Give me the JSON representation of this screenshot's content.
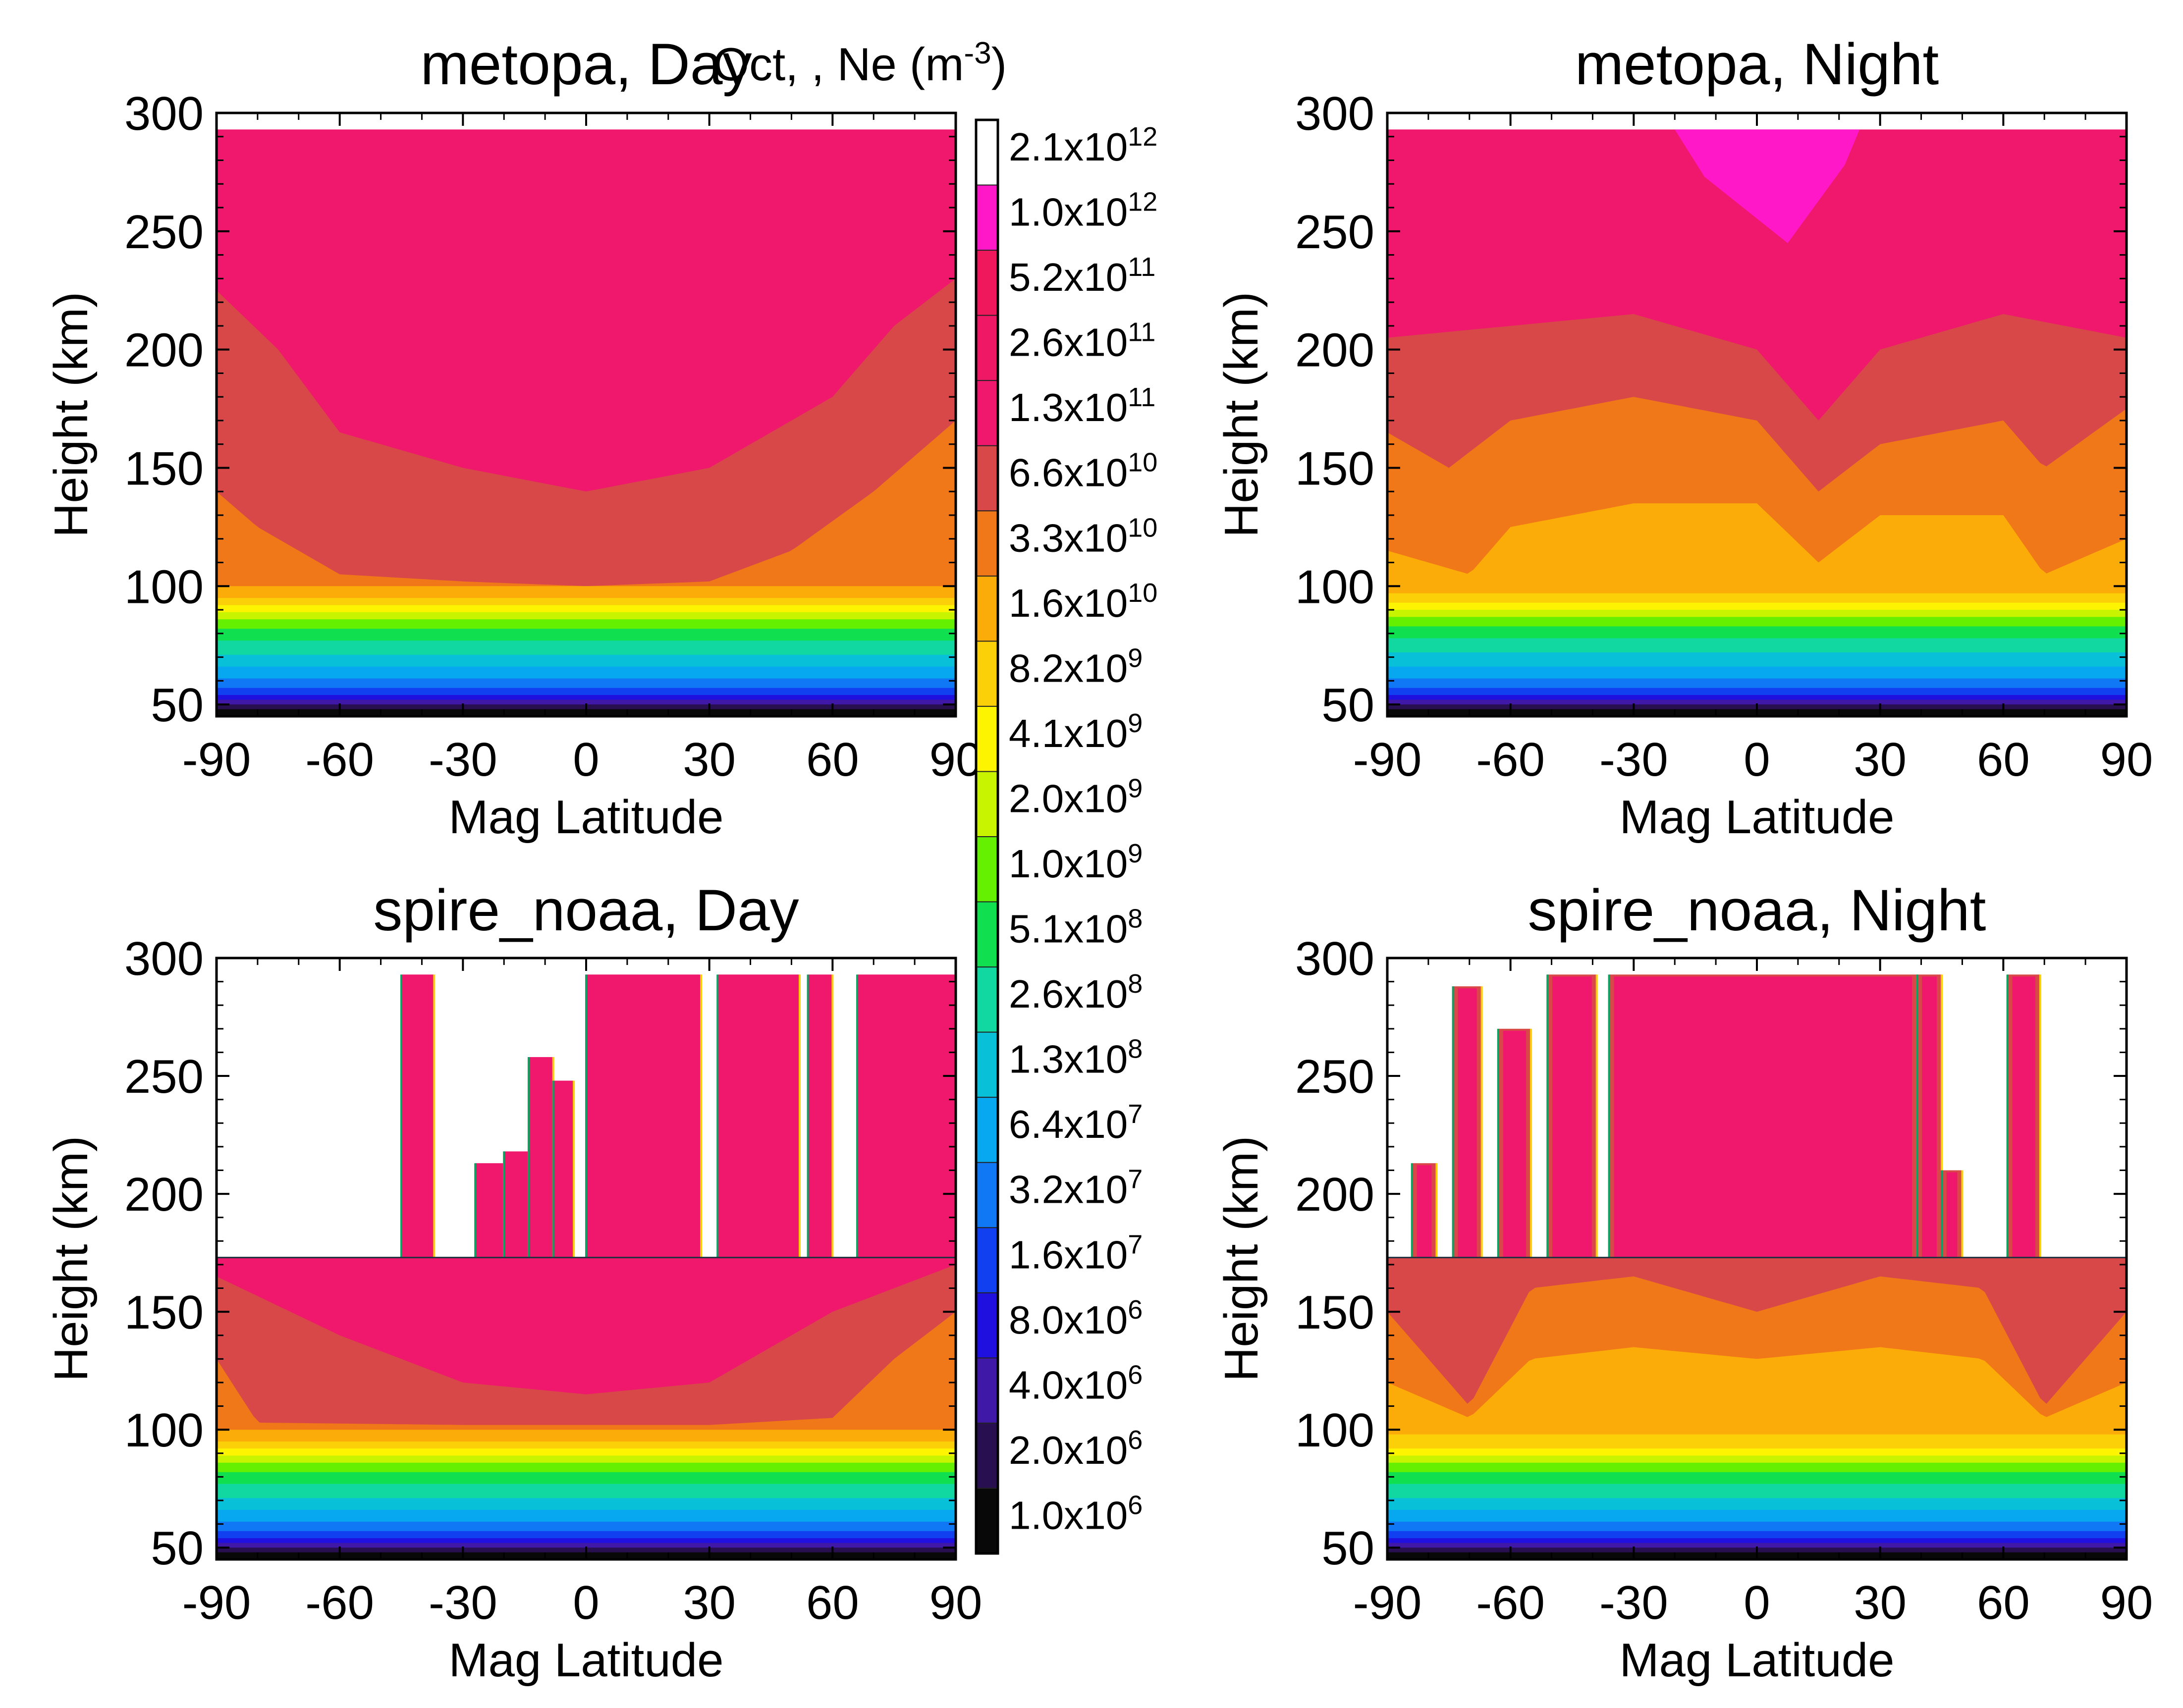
{
  "colorbar": {
    "title": "Oct, , Ne (m",
    "title_sup": "-3",
    "title_end": ")",
    "labels": [
      {
        "mant": "2.1x10",
        "exp": "12"
      },
      {
        "mant": "1.0x10",
        "exp": "12"
      },
      {
        "mant": "5.2x10",
        "exp": "11"
      },
      {
        "mant": "2.6x10",
        "exp": "11"
      },
      {
        "mant": "1.3x10",
        "exp": "11"
      },
      {
        "mant": "6.6x10",
        "exp": "10"
      },
      {
        "mant": "3.3x10",
        "exp": "10"
      },
      {
        "mant": "1.6x10",
        "exp": "10"
      },
      {
        "mant": "8.2x10",
        "exp": "9"
      },
      {
        "mant": "4.1x10",
        "exp": "9"
      },
      {
        "mant": "2.0x10",
        "exp": "9"
      },
      {
        "mant": "1.0x10",
        "exp": "9"
      },
      {
        "mant": "5.1x10",
        "exp": "8"
      },
      {
        "mant": "2.6x10",
        "exp": "8"
      },
      {
        "mant": "1.3x10",
        "exp": "8"
      },
      {
        "mant": "6.4x10",
        "exp": "7"
      },
      {
        "mant": "3.2x10",
        "exp": "7"
      },
      {
        "mant": "1.6x10",
        "exp": "7"
      },
      {
        "mant": "8.0x10",
        "exp": "6"
      },
      {
        "mant": "4.0x10",
        "exp": "6"
      },
      {
        "mant": "2.0x10",
        "exp": "6"
      },
      {
        "mant": "1.0x10",
        "exp": "6"
      }
    ],
    "colors": [
      "#ffffff",
      "#ff18c8",
      "#f0185c",
      "#ee1864",
      "#f0186c",
      "#d84848",
      "#f07818",
      "#fcac08",
      "#fcd008",
      "#fcf400",
      "#c8f400",
      "#64f000",
      "#10e050",
      "#10d8a0",
      "#08c0d8",
      "#08a8f0",
      "#1078f4",
      "#1040f0",
      "#2010e0",
      "#4018a8",
      "#281050",
      "#080808"
    ]
  },
  "chart_data": [
    {
      "type": "contour",
      "title": "metopa, Day",
      "xlabel": "Mag Latitude",
      "ylabel": "Height (km)",
      "xlim": [
        -90,
        90
      ],
      "ylim": [
        45,
        300
      ],
      "xticks": [
        "-90",
        "-60",
        "-30",
        "0",
        "30",
        "60",
        "90"
      ],
      "yticks": [
        "50",
        "100",
        "150",
        "200",
        "250",
        "300"
      ],
      "data_top_km": 293,
      "lower_bands": [
        {
          "top_km": 98,
          "color": "#fcac08"
        },
        {
          "top_km": 95,
          "color": "#fcd008"
        },
        {
          "top_km": 92,
          "color": "#fcf400"
        },
        {
          "top_km": 89,
          "color": "#c8f400"
        },
        {
          "top_km": 86,
          "color": "#64f000"
        },
        {
          "top_km": 82,
          "color": "#10e050"
        },
        {
          "top_km": 77,
          "color": "#10d8a0"
        },
        {
          "top_km": 71,
          "color": "#08c0d8"
        },
        {
          "top_km": 66,
          "color": "#08a8f0"
        },
        {
          "top_km": 61,
          "color": "#1078f4"
        },
        {
          "top_km": 57,
          "color": "#1040f0"
        },
        {
          "top_km": 54,
          "color": "#2010e0"
        },
        {
          "top_km": 52,
          "color": "#4018a8"
        },
        {
          "top_km": 50,
          "color": "#281050"
        },
        {
          "top_km": 48,
          "color": "#080808"
        }
      ],
      "contours": [
        {
          "level": "1.6x10^10",
          "color": "#fcac08",
          "lat": [
            -90,
            -60,
            -30,
            0,
            30,
            60,
            90
          ],
          "top_km": [
            100,
            100,
            100,
            100,
            100,
            100,
            100
          ]
        },
        {
          "level": "3.3x10^10",
          "color": "#f07818",
          "lat": [
            -90,
            -80,
            -60,
            -30,
            0,
            30,
            50,
            70,
            90
          ],
          "top_km": [
            140,
            125,
            105,
            102,
            100,
            102,
            115,
            140,
            170
          ]
        },
        {
          "level": "6.6x10^10",
          "color": "#d84848",
          "lat": [
            -90,
            -75,
            -60,
            -30,
            0,
            30,
            60,
            75,
            90
          ],
          "top_km": [
            225,
            200,
            165,
            150,
            140,
            150,
            180,
            210,
            230
          ]
        },
        {
          "level": "1.3x10^11",
          "color": "#f0186c",
          "lat": [
            -90,
            90
          ],
          "top_km": [
            293,
            293
          ]
        }
      ]
    },
    {
      "type": "contour",
      "title": "metopa, Night",
      "xlabel": "Mag Latitude",
      "ylabel": "Height (km)",
      "xlim": [
        -90,
        90
      ],
      "ylim": [
        45,
        300
      ],
      "xticks": [
        "-90",
        "-60",
        "-30",
        "0",
        "30",
        "60",
        "90"
      ],
      "yticks": [
        "50",
        "100",
        "150",
        "200",
        "250",
        "300"
      ],
      "data_top_km": 293,
      "lower_bands": [
        {
          "top_km": 96,
          "color": "#fcd008"
        },
        {
          "top_km": 93,
          "color": "#fcf400"
        },
        {
          "top_km": 90,
          "color": "#c8f400"
        },
        {
          "top_km": 87,
          "color": "#64f000"
        },
        {
          "top_km": 83,
          "color": "#10e050"
        },
        {
          "top_km": 78,
          "color": "#10d8a0"
        },
        {
          "top_km": 72,
          "color": "#08c0d8"
        },
        {
          "top_km": 66,
          "color": "#08a8f0"
        },
        {
          "top_km": 61,
          "color": "#1078f4"
        },
        {
          "top_km": 57,
          "color": "#1040f0"
        },
        {
          "top_km": 54,
          "color": "#2010e0"
        },
        {
          "top_km": 52,
          "color": "#4018a8"
        },
        {
          "top_km": 50,
          "color": "#281050"
        },
        {
          "top_km": 48,
          "color": "#080808"
        }
      ],
      "contours": [
        {
          "level": "8.2x10^9",
          "color": "#fcd008",
          "lat": [
            -90,
            90
          ],
          "top_km": [
            97,
            97
          ]
        },
        {
          "level": "1.6x10^10",
          "color": "#fcac08",
          "lat": [
            -90,
            -70,
            -60,
            -30,
            0,
            15,
            30,
            60,
            70,
            90
          ],
          "top_km": [
            115,
            105,
            125,
            135,
            135,
            110,
            130,
            130,
            105,
            120
          ]
        },
        {
          "level": "3.3x10^10",
          "color": "#f07818",
          "lat": [
            -90,
            -75,
            -60,
            -30,
            0,
            15,
            30,
            60,
            70,
            90
          ],
          "top_km": [
            165,
            150,
            170,
            180,
            170,
            140,
            160,
            170,
            150,
            175
          ]
        },
        {
          "level": "6.6x10^10",
          "color": "#d84848",
          "lat": [
            -90,
            -60,
            -30,
            0,
            15,
            30,
            60,
            90
          ],
          "top_km": [
            205,
            210,
            215,
            200,
            170,
            200,
            215,
            205
          ]
        },
        {
          "level": "1.3x10^11",
          "color": "#f0186c",
          "lat": [
            -90,
            90
          ],
          "top_km": [
            293,
            293
          ]
        }
      ],
      "peak_region": {
        "level": "1.0x10^12",
        "color": "#ff18c8",
        "lat": [
          -20,
          25
        ],
        "bottom_km": 245
      }
    },
    {
      "type": "contour",
      "title": "spire_noaa, Day",
      "xlabel": "Mag Latitude",
      "ylabel": "Height (km)",
      "xlim": [
        -90,
        90
      ],
      "ylim": [
        45,
        300
      ],
      "xticks": [
        "-90",
        "-60",
        "-30",
        "0",
        "30",
        "60",
        "90"
      ],
      "yticks": [
        "50",
        "100",
        "150",
        "200",
        "250",
        "300"
      ],
      "data_top_km": 173,
      "lower_bands": [
        {
          "top_km": 92,
          "color": "#fcf400"
        },
        {
          "top_km": 89,
          "color": "#c8f400"
        },
        {
          "top_km": 86,
          "color": "#64f000"
        },
        {
          "top_km": 82,
          "color": "#10e050"
        },
        {
          "top_km": 77,
          "color": "#10d8a0"
        },
        {
          "top_km": 71,
          "color": "#08c0d8"
        },
        {
          "top_km": 66,
          "color": "#08a8f0"
        },
        {
          "top_km": 61,
          "color": "#1078f4"
        },
        {
          "top_km": 57,
          "color": "#1040f0"
        },
        {
          "top_km": 54,
          "color": "#2010e0"
        },
        {
          "top_km": 52,
          "color": "#4018a8"
        },
        {
          "top_km": 50,
          "color": "#281050"
        },
        {
          "top_km": 48,
          "color": "#080808"
        }
      ],
      "contours": [
        {
          "level": "8.2x10^9",
          "color": "#fcd008",
          "lat": [
            -90,
            90
          ],
          "top_km": [
            95,
            95
          ]
        },
        {
          "level": "1.6x10^10",
          "color": "#fcac08",
          "lat": [
            -90,
            -60,
            -30,
            0,
            30,
            60,
            90
          ],
          "top_km": [
            100,
            100,
            100,
            100,
            100,
            100,
            100
          ]
        },
        {
          "level": "3.3x10^10",
          "color": "#f07818",
          "lat": [
            -90,
            -80,
            -30,
            0,
            30,
            60,
            75,
            90
          ],
          "top_km": [
            130,
            103,
            102,
            102,
            102,
            105,
            130,
            150
          ]
        },
        {
          "level": "6.6x10^10",
          "color": "#d84848",
          "lat": [
            -90,
            -60,
            -30,
            0,
            30,
            60,
            90
          ],
          "top_km": [
            165,
            140,
            120,
            115,
            120,
            150,
            170
          ]
        },
        {
          "level": "1.3x10^11",
          "color": "#f0186c",
          "lat": [
            -90,
            90
          ],
          "top_km": [
            173,
            173
          ]
        }
      ],
      "columns": [
        {
          "lat": [
            -45,
            -37
          ],
          "top_km": 293
        },
        {
          "lat": [
            -27,
            -20
          ],
          "top_km": 213
        },
        {
          "lat": [
            -20,
            -14
          ],
          "top_km": 218
        },
        {
          "lat": [
            -14,
            -8
          ],
          "top_km": 258
        },
        {
          "lat": [
            -8,
            -3
          ],
          "top_km": 248
        },
        {
          "lat": [
            0,
            28
          ],
          "top_km": 293
        },
        {
          "lat": [
            32,
            52
          ],
          "top_km": 293
        },
        {
          "lat": [
            54,
            60
          ],
          "top_km": 293
        },
        {
          "lat": [
            66,
            90
          ],
          "top_km": 293
        }
      ]
    },
    {
      "type": "contour",
      "title": "spire_noaa, Night",
      "xlabel": "Mag Latitude",
      "ylabel": "Height (km)",
      "xlim": [
        -90,
        90
      ],
      "ylim": [
        45,
        300
      ],
      "xticks": [
        "-90",
        "-60",
        "-30",
        "0",
        "30",
        "60",
        "90"
      ],
      "yticks": [
        "50",
        "100",
        "150",
        "200",
        "250",
        "300"
      ],
      "data_top_km": 173,
      "lower_bands": [
        {
          "top_km": 92,
          "color": "#fcf400"
        },
        {
          "top_km": 89,
          "color": "#c8f400"
        },
        {
          "top_km": 86,
          "color": "#64f000"
        },
        {
          "top_km": 82,
          "color": "#10e050"
        },
        {
          "top_km": 77,
          "color": "#10d8a0"
        },
        {
          "top_km": 71,
          "color": "#08c0d8"
        },
        {
          "top_km": 66,
          "color": "#08a8f0"
        },
        {
          "top_km": 61,
          "color": "#1078f4"
        },
        {
          "top_km": 57,
          "color": "#1040f0"
        },
        {
          "top_km": 54,
          "color": "#2010e0"
        },
        {
          "top_km": 52,
          "color": "#4018a8"
        },
        {
          "top_km": 50,
          "color": "#281050"
        },
        {
          "top_km": 48,
          "color": "#080808"
        }
      ],
      "contours": [
        {
          "level": "8.2x10^9",
          "color": "#fcd008",
          "lat": [
            -90,
            90
          ],
          "top_km": [
            98,
            98
          ]
        },
        {
          "level": "1.6x10^10",
          "color": "#fcac08",
          "lat": [
            -90,
            -70,
            -55,
            -30,
            0,
            30,
            55,
            70,
            90
          ],
          "top_km": [
            120,
            105,
            130,
            135,
            130,
            135,
            130,
            105,
            120
          ]
        },
        {
          "level": "3.3x10^10",
          "color": "#f07818",
          "lat": [
            -90,
            -70,
            -55,
            -30,
            0,
            30,
            55,
            70,
            90
          ],
          "top_km": [
            150,
            110,
            160,
            165,
            150,
            165,
            160,
            110,
            150
          ]
        },
        {
          "level": "6.6x10^10",
          "color": "#d84848",
          "lat": [
            -90,
            90
          ],
          "top_km": [
            173,
            173
          ]
        }
      ],
      "columns": [
        {
          "lat": [
            -84,
            -78
          ],
          "top_km": 213
        },
        {
          "lat": [
            -74,
            -67
          ],
          "top_km": 288
        },
        {
          "lat": [
            -63,
            -55
          ],
          "top_km": 270
        },
        {
          "lat": [
            -51,
            -39
          ],
          "top_km": 293
        },
        {
          "lat": [
            -36,
            39
          ],
          "top_km": 293
        },
        {
          "lat": [
            39,
            45
          ],
          "top_km": 293
        },
        {
          "lat": [
            45,
            50
          ],
          "top_km": 210
        },
        {
          "lat": [
            61,
            69
          ],
          "top_km": 293
        }
      ],
      "column_core_color": "#f0186c",
      "column_fringe_color": "#d84848"
    }
  ]
}
